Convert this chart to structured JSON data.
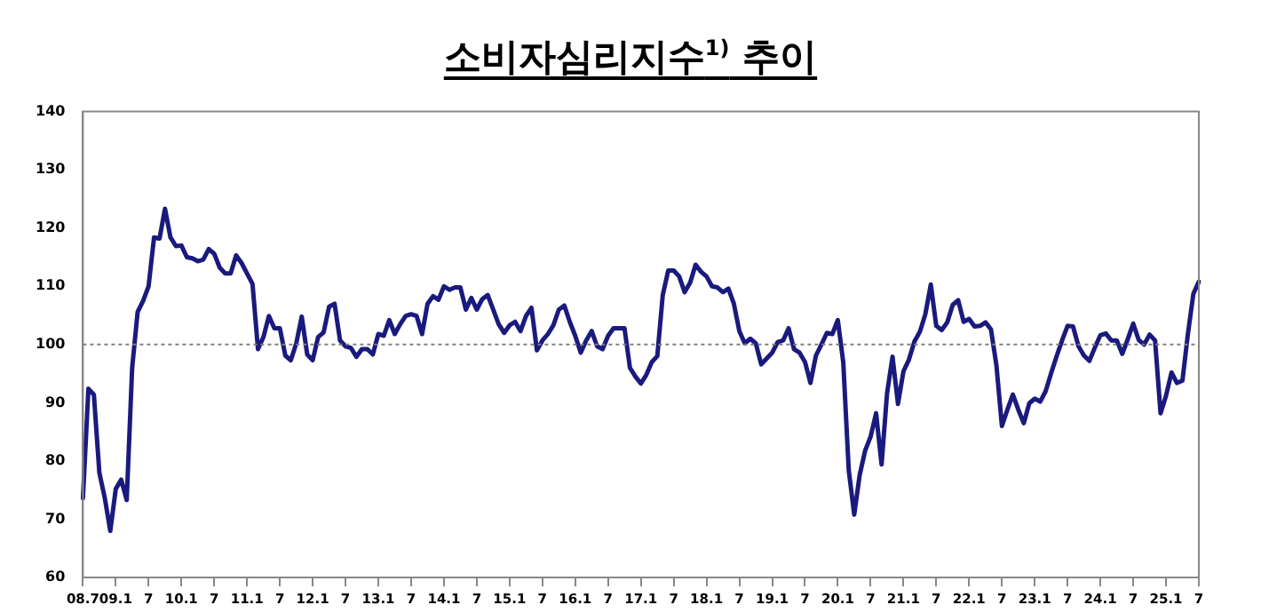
{
  "chart_data": {
    "type": "line",
    "title": "소비자심리지수$^{1)}$ 추이",
    "categories": [
      "08.7",
      null,
      null,
      null,
      null,
      null,
      "09.1",
      null,
      null,
      null,
      null,
      null,
      "7",
      null,
      null,
      null,
      null,
      null,
      "10.1",
      null,
      null,
      null,
      null,
      null,
      "7",
      null,
      null,
      null,
      null,
      null,
      "11.1",
      null,
      null,
      null,
      null,
      null,
      "7",
      null,
      null,
      null,
      null,
      null,
      "12.1",
      null,
      null,
      null,
      null,
      null,
      "7",
      null,
      null,
      null,
      null,
      null,
      "13.1",
      null,
      null,
      null,
      null,
      null,
      "7",
      null,
      null,
      null,
      null,
      null,
      "14.1",
      null,
      null,
      null,
      null,
      null,
      "7",
      null,
      null,
      null,
      null,
      null,
      "15.1",
      null,
      null,
      null,
      null,
      null,
      "7",
      null,
      null,
      null,
      null,
      null,
      "16.1",
      null,
      null,
      null,
      null,
      null,
      "7",
      null,
      null,
      null,
      null,
      null,
      "17.1",
      null,
      null,
      null,
      null,
      null,
      "7",
      null,
      null,
      null,
      null,
      null,
      "18.1",
      null,
      null,
      null,
      null,
      null,
      "7",
      null,
      null,
      null,
      null,
      null,
      "19.1",
      null,
      null,
      null,
      null,
      null,
      "7",
      null,
      null,
      null,
      null,
      null,
      "20.1",
      null,
      null,
      null,
      null,
      null,
      "7",
      null,
      null,
      null,
      null,
      null,
      "21.1",
      null,
      null,
      null,
      null,
      null,
      "7",
      null,
      null,
      null,
      null,
      null,
      "22.1",
      null,
      null,
      null,
      null,
      null,
      "7",
      null,
      null,
      null,
      null,
      null,
      "23.1",
      null,
      null,
      null,
      null,
      null,
      "7",
      null,
      null,
      null,
      null,
      null,
      "24.1",
      null,
      null,
      null,
      null,
      null,
      "7",
      null,
      null,
      null,
      null,
      null,
      "25.1",
      null,
      null,
      null,
      null,
      null,
      "7"
    ],
    "series": [
      {
        "color": "#1a1a7e",
        "values": [
          73.6,
          92.4,
          91.4,
          78,
          73.6,
          68,
          75.2,
          76.8,
          73.3,
          96,
          105.6,
          107.5,
          110,
          118.4,
          118.2,
          123.3,
          118.4,
          116.9,
          117,
          115,
          114.8,
          114.3,
          114.6,
          116.4,
          115.6,
          113.2,
          112.2,
          112.2,
          115.3,
          114,
          112.2,
          110.4,
          99.2,
          101.3,
          104.9,
          102.8,
          102.8,
          98.1,
          97.3,
          100.2,
          104.8,
          98.3,
          97.3,
          101.3,
          102.1,
          106.5,
          107,
          100.7,
          99.7,
          99.4,
          97.9,
          99.2,
          99.2,
          98.3,
          101.8,
          101.5,
          104.2,
          101.8,
          103.5,
          104.9,
          105.2,
          104.9,
          101.8,
          107,
          108.3,
          107.7,
          110,
          109.4,
          109.8,
          109.8,
          106,
          108,
          106,
          107.8,
          108.5,
          106,
          103.5,
          102,
          103.3,
          103.9,
          102.3,
          104.9,
          106.3,
          99,
          100.7,
          101.8,
          103.3,
          106,
          106.7,
          103.9,
          101.5,
          98.6,
          100.7,
          102.3,
          99.7,
          99.2,
          101.5,
          102.8,
          102.8,
          102.8,
          96,
          94.5,
          93.3,
          94.8,
          97,
          98,
          108.5,
          112.7,
          112.7,
          111.7,
          109,
          110.6,
          113.7,
          112.5,
          111.7,
          110,
          109.8,
          109,
          109.6,
          107,
          102.3,
          100.2,
          101,
          100.2,
          96.6,
          97.6,
          98.6,
          100.4,
          100.7,
          102.8,
          99.2,
          98.6,
          97,
          93.4,
          98.1,
          100,
          102,
          101.8,
          104.2,
          96.9,
          78.4,
          70.8,
          77.6,
          81.8,
          84.2,
          88.2,
          79.4,
          91.6,
          97.9,
          89.8,
          95.4,
          97.4,
          100.5,
          102.2,
          105.2,
          110.3,
          103.2,
          102.5,
          103.8,
          106.8,
          107.6,
          103.9,
          104.4,
          103.1,
          103.2,
          103.8,
          102.6,
          96.4,
          86,
          88.8,
          91.4,
          88.8,
          86.5,
          89.9,
          90.7,
          90.2,
          92,
          95.1,
          98,
          100.7,
          103.2,
          103.1,
          99.7,
          98.1,
          97.2,
          99.5,
          101.6,
          101.9,
          100.7,
          100.7,
          98.4,
          100.9,
          103.6,
          100.8,
          100,
          101.7,
          100.7,
          88.2,
          91.2,
          95.2,
          93.4,
          93.8,
          101.8,
          108.7,
          110.8
        ]
      }
    ],
    "ylim": [
      60,
      140
    ],
    "yticks": [
      60,
      70,
      80,
      90,
      100,
      110,
      120,
      130,
      140
    ],
    "ref_lines": [
      {
        "axis": "y",
        "value": 100,
        "color": "#808080",
        "line_style": "dotted"
      }
    ],
    "marker": "none",
    "line_style": "solid"
  }
}
